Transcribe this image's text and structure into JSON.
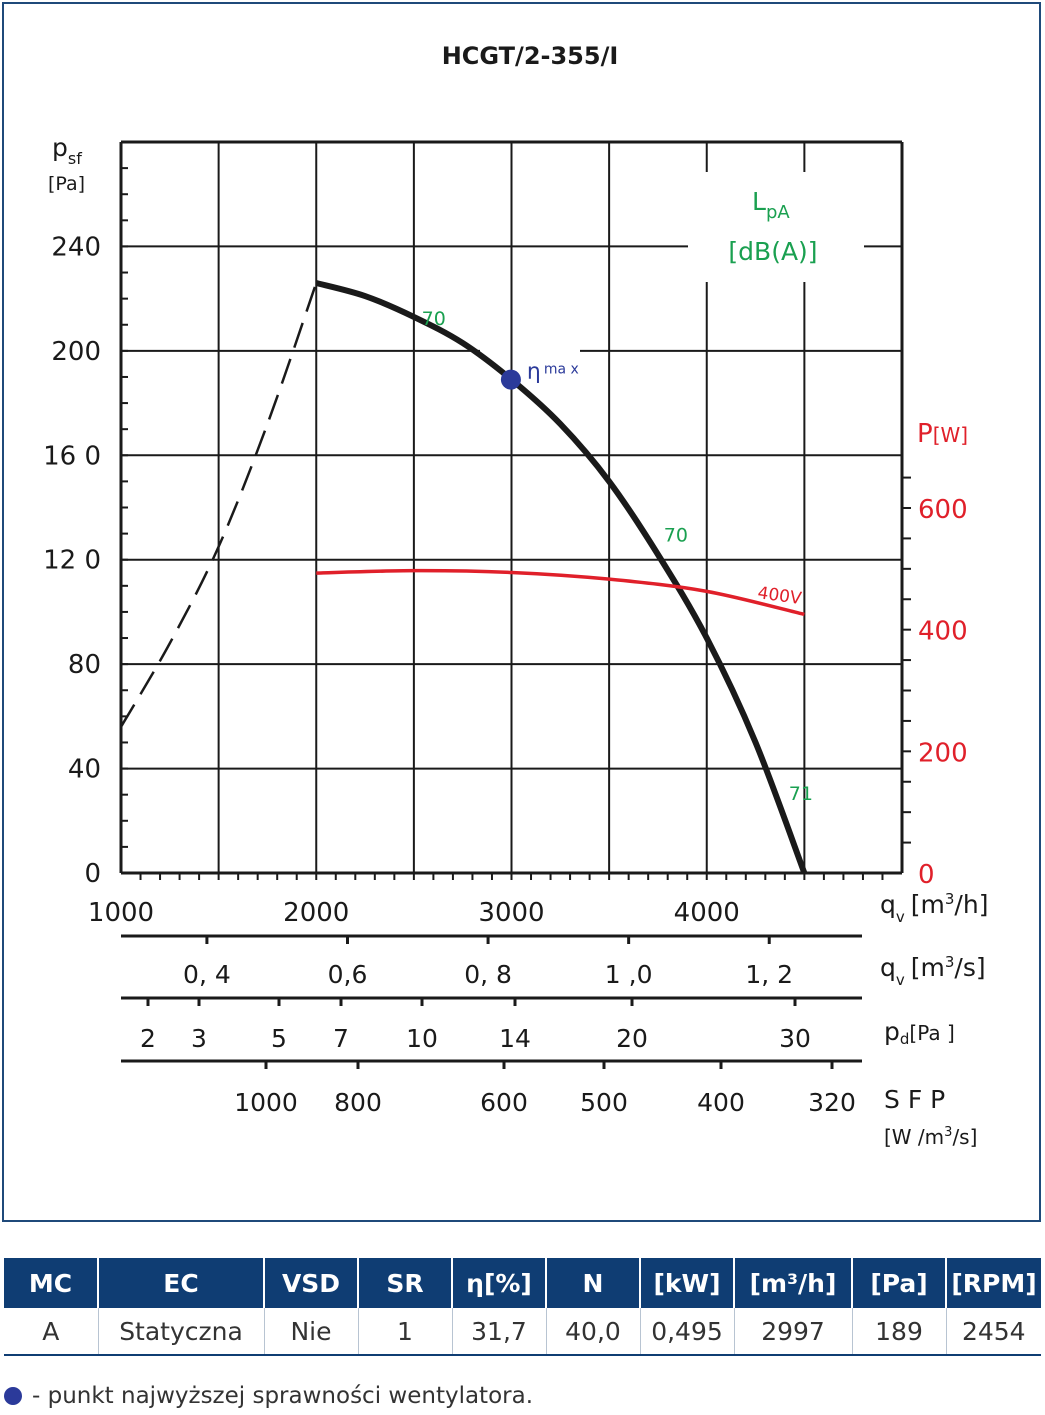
{
  "chart_data": {
    "type": "line",
    "title": "HCGT/2-355/I",
    "y_left_label_main": "p",
    "y_left_label_sub": "sf",
    "y_left_unit": "[Pa]",
    "y_left_ticks": [
      "0",
      "40",
      "80",
      "12 0",
      "16 0",
      "200",
      "240"
    ],
    "y_left_tick_values": [
      0,
      40,
      80,
      120,
      160,
      200,
      240
    ],
    "ylim": [
      0,
      280
    ],
    "y_right_label": "P",
    "y_right_unit": "[W]",
    "y_right_ticks": [
      "0",
      "200",
      "400",
      "600"
    ],
    "y_right_tick_values": [
      0,
      200,
      400,
      600
    ],
    "y_right_lim": [
      0,
      600
    ],
    "x_ticks": [
      "1000",
      "2000",
      "3000",
      "4000"
    ],
    "x_tick_values": [
      1000,
      2000,
      3000,
      4000
    ],
    "xlim": [
      1000,
      5000
    ],
    "x_label_main": "q",
    "x_label_sub": "v",
    "x_unit_m3h": "[m",
    "x_unit_m3h_sup": "3",
    "x_unit_m3h_end": "/h]",
    "x_unit_m3s_end": "/s]",
    "scale_m3s": {
      "ticks": [
        "0, 4",
        "0,6",
        "0, 8",
        "1 ,0",
        "1, 2"
      ],
      "values": [
        0.4,
        0.6,
        0.8,
        1.0,
        1.2
      ]
    },
    "scale_pd": {
      "label": "p",
      "label_sub": "d",
      "unit": "[Pa ]",
      "ticks": [
        "2",
        "3",
        "5",
        "7",
        "10",
        "14",
        "20",
        "30"
      ],
      "values": [
        2,
        3,
        5,
        7,
        10,
        14,
        20,
        30
      ]
    },
    "scale_sfp": {
      "label": "S F P",
      "unit": "[W /m",
      "unit_sup": "3",
      "unit_end": "/s]",
      "ticks": [
        "1000",
        "800",
        "600",
        "500",
        "400",
        "320"
      ],
      "values": [
        1000,
        800,
        600,
        500,
        400,
        320
      ]
    },
    "lpa_label": "L",
    "lpa_sub": "pA",
    "lpa_unit": "[dB(A)]",
    "series": [
      {
        "role": "pressure",
        "style": "solid",
        "color": "#1a1a1a",
        "x": [
          2000,
          2250,
          2500,
          2750,
          3000,
          3250,
          3500,
          3750,
          4000,
          4250,
          4500
        ],
        "y": [
          226,
          221,
          213,
          203,
          189,
          172,
          150,
          122,
          90,
          50,
          0
        ]
      },
      {
        "role": "stall-region",
        "style": "dashed",
        "color": "#1a1a1a",
        "x": [
          1000,
          1250,
          1500,
          1750,
          2000
        ],
        "y": [
          56,
          88,
          125,
          172,
          226
        ]
      },
      {
        "name": "400V",
        "role": "power",
        "axis": "right",
        "color": "#e0202a",
        "x": [
          2000,
          2500,
          3000,
          3500,
          4000,
          4500
        ],
        "y": [
          493,
          497,
          494,
          483,
          463,
          425
        ]
      }
    ],
    "lpa_labels": [
      {
        "text": "70",
        "x": 2540,
        "y": 210
      },
      {
        "text": "70",
        "x": 3780,
        "y": 127
      },
      {
        "text": "71",
        "x": 4420,
        "y": 28
      }
    ],
    "power_label": "400V",
    "eta_point": {
      "x": 2997,
      "y": 189,
      "label_main": "η",
      "label_sub": "ma x"
    },
    "grid": true,
    "accent_colors": {
      "frame": "#1f4a7a",
      "lpa": "#1aa050",
      "power": "#e0202a",
      "eta": "#2b3a9a"
    }
  },
  "table": {
    "headers": [
      "MC",
      "EC",
      "VSD",
      "SR",
      "η[%]",
      "N",
      "[kW]",
      "[m³/h]",
      "[Pa]",
      "[RPM]"
    ],
    "row": [
      "A",
      "Statyczna",
      "Nie",
      "1",
      "31,7",
      "40,0",
      "0,495",
      "2997",
      "189",
      "2454"
    ]
  },
  "legend_note": "- punkt najwyższej sprawności wentylatora."
}
